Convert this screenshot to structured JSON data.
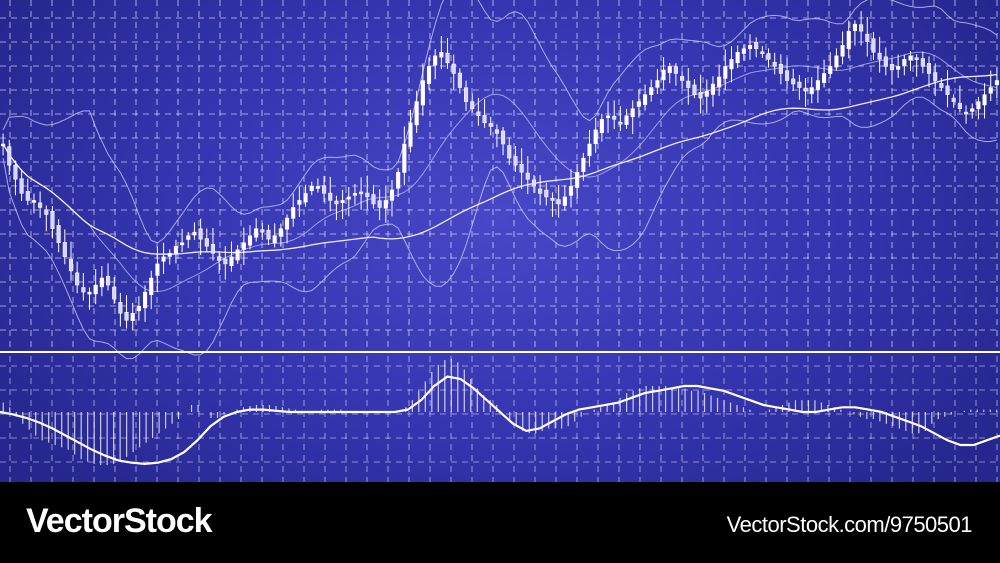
{
  "footer": {
    "brand": "VectorStock",
    "credit": "VectorStock.com/9750501"
  },
  "colors": {
    "background": "#3838b4",
    "grid": "#ffffff",
    "candle": "#ffffff",
    "band": "#c8c8ff",
    "footer": "#000000"
  },
  "chart_data": [
    {
      "type": "candlestick",
      "panel": "price",
      "grid": true,
      "overlays": [
        "bollinger-upper",
        "bollinger-middle",
        "bollinger-lower",
        "moving-average"
      ],
      "close": [
        112,
        106,
        102,
        98,
        96,
        96,
        94,
        92,
        88,
        84,
        80,
        76,
        72,
        70,
        70,
        72,
        74,
        72,
        68,
        64,
        62,
        64,
        66,
        70,
        74,
        78,
        80,
        81,
        83,
        84,
        86,
        87,
        85,
        83,
        81,
        79,
        78,
        80,
        82,
        84,
        86,
        88,
        87,
        85,
        86,
        88,
        91,
        94,
        96,
        98,
        100,
        100,
        98,
        96,
        95,
        96,
        97,
        98,
        98,
        97,
        95,
        94,
        96,
        99,
        104,
        112,
        118,
        124,
        130,
        134,
        137,
        138,
        135,
        132,
        128,
        124,
        122,
        120,
        118,
        117,
        115,
        112,
        108,
        106,
        104,
        102,
        100,
        98,
        97,
        96,
        95,
        97,
        100,
        104,
        108,
        112,
        116,
        119,
        120,
        119,
        118,
        120,
        122,
        124,
        126,
        128,
        130,
        133,
        134,
        132,
        130,
        128,
        126,
        125,
        127,
        129,
        131,
        134,
        136,
        138,
        139,
        140,
        139,
        138,
        136,
        134,
        132,
        130,
        129,
        128,
        127,
        128,
        130,
        132,
        134,
        137,
        140,
        144,
        146,
        144,
        141,
        138,
        136,
        134,
        133,
        134,
        136,
        137,
        136,
        134,
        132,
        130,
        128,
        126,
        124,
        122,
        121,
        122,
        124,
        126,
        128,
        130
      ]
    },
    {
      "type": "histogram+line",
      "panel": "oscillator",
      "grid": true,
      "histogram": [
        0.08,
        0.04,
        -0.04,
        -0.1,
        -0.15,
        -0.2,
        -0.24,
        -0.26,
        -0.28,
        -0.3,
        -0.32,
        -0.36,
        -0.4,
        -0.42,
        -0.44,
        -0.45,
        -0.45,
        -0.44,
        -0.42,
        -0.38,
        -0.34,
        -0.3,
        -0.26,
        -0.22,
        -0.18,
        -0.14,
        -0.1,
        -0.06,
        0.0,
        0.06,
        0.06,
        0.0,
        -0.05,
        -0.05,
        -0.02,
        0.0,
        0.02,
        0.04,
        0.05,
        0.06,
        0.06,
        0.06,
        0.05,
        0.04,
        0.03,
        0.02,
        0.01,
        0.01,
        0.01,
        0.02,
        0.02,
        0.02,
        0.02,
        0.01,
        0.0,
        0.0,
        0.0,
        0.0,
        0.0,
        0.0,
        0.0,
        0.0,
        0.04,
        0.1,
        0.18,
        0.26,
        0.34,
        0.4,
        0.44,
        0.45,
        0.42,
        0.36,
        0.28,
        0.2,
        0.14,
        0.1,
        0.06,
        0.0,
        -0.06,
        -0.12,
        -0.16,
        -0.18,
        -0.18,
        -0.16,
        -0.14,
        -0.14,
        -0.14,
        -0.12,
        -0.08,
        -0.04,
        0.0,
        0.02,
        0.04,
        0.06,
        0.08,
        0.12,
        0.16,
        0.18,
        0.2,
        0.22,
        0.22,
        0.22,
        0.22,
        0.2,
        0.2,
        0.2,
        0.18,
        0.18,
        0.16,
        0.14,
        0.12,
        0.1,
        0.08,
        0.06,
        0.04,
        0.02,
        0.0,
        0.0,
        0.02,
        0.04,
        0.06,
        0.08,
        0.1,
        0.1,
        0.1,
        0.1,
        0.08,
        0.06,
        0.04,
        0.02,
        0.0,
        -0.02,
        -0.04,
        -0.06,
        -0.06,
        -0.08,
        -0.1,
        -0.12,
        -0.14,
        -0.16,
        -0.18,
        -0.18,
        -0.16,
        -0.1,
        -0.06,
        -0.04,
        -0.02,
        0.0,
        0.01,
        0.02,
        0.02,
        0.02,
        0.02,
        0.02
      ],
      "signal": [
        0.0,
        -0.02,
        -0.05,
        -0.09,
        -0.14,
        -0.2,
        -0.26,
        -0.32,
        -0.37,
        -0.41,
        -0.43,
        -0.44,
        -0.43,
        -0.4,
        -0.34,
        -0.24,
        -0.12,
        -0.04,
        0.0,
        0.02,
        0.02,
        0.01,
        0.0,
        0.0,
        0.0,
        0.0,
        0.0,
        0.0,
        0.0,
        0.0,
        0.0,
        0.02,
        0.1,
        0.22,
        0.3,
        0.28,
        0.2,
        0.1,
        0.0,
        -0.1,
        -0.16,
        -0.14,
        -0.08,
        -0.02,
        0.02,
        0.04,
        0.06,
        0.08,
        0.12,
        0.16,
        0.18,
        0.2,
        0.22,
        0.22,
        0.2,
        0.18,
        0.14,
        0.1,
        0.06,
        0.04,
        0.02,
        0.0,
        0.0,
        0.02,
        0.04,
        0.04,
        0.02,
        0.0,
        -0.04,
        -0.08,
        -0.12,
        -0.18,
        -0.24,
        -0.28,
        -0.28,
        -0.24,
        -0.2
      ]
    }
  ]
}
